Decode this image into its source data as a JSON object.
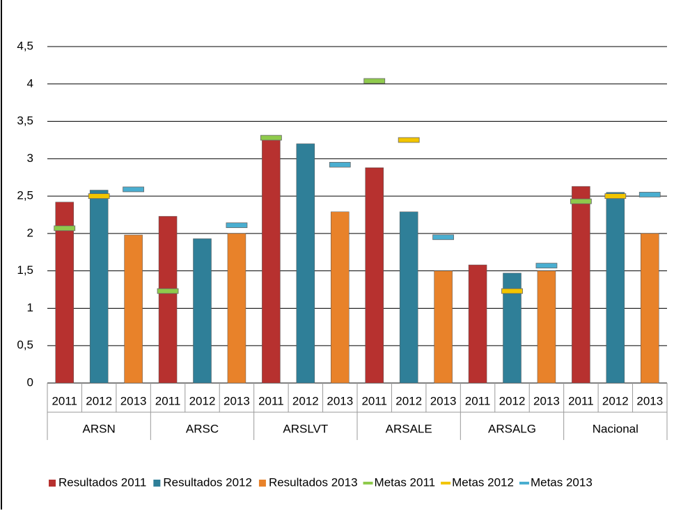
{
  "chart_data": {
    "type": "bar",
    "groups": [
      "ARSN",
      "ARSC",
      "ARSLVT",
      "ARSALE",
      "ARSALG",
      "Nacional"
    ],
    "categories": [
      "2011",
      "2012",
      "2013",
      "2011",
      "2012",
      "2013",
      "2011",
      "2012",
      "2013",
      "2011",
      "2012",
      "2013",
      "2011",
      "2012",
      "2013",
      "2011",
      "2012",
      "2013"
    ],
    "ylim": [
      0,
      4.5
    ],
    "yticks": [
      0,
      {
        "value": 0.5,
        "label": "0,5"
      },
      1,
      {
        "value": 1.5,
        "label": "1,5"
      },
      2,
      {
        "value": 2.5,
        "label": "2,5"
      },
      3,
      {
        "value": 3.5,
        "label": "3,5"
      },
      4,
      {
        "value": 4.5,
        "label": "4,5"
      }
    ],
    "grid": true,
    "legend": "bottom",
    "series": [
      {
        "name": "Resultados 2011",
        "type": "bar",
        "color": "#b7312f",
        "values": [
          2.42,
          null,
          null,
          2.23,
          null,
          null,
          3.27,
          null,
          null,
          2.88,
          null,
          null,
          1.58,
          null,
          null,
          2.63,
          null,
          null
        ]
      },
      {
        "name": "Resultados 2012",
        "type": "bar",
        "color": "#2f7f98",
        "values": [
          null,
          2.58,
          null,
          null,
          1.93,
          null,
          null,
          3.2,
          null,
          null,
          2.29,
          null,
          null,
          1.47,
          null,
          null,
          2.55,
          null
        ]
      },
      {
        "name": "Resultados 2013",
        "type": "bar",
        "color": "#e8822a",
        "values": [
          null,
          null,
          1.98,
          null,
          null,
          2.0,
          null,
          null,
          2.29,
          null,
          null,
          1.5,
          null,
          null,
          1.5,
          null,
          null,
          2.0
        ]
      },
      {
        "name": "Metas 2011",
        "type": "marker",
        "color": "#8fca4c",
        "values": [
          2.07,
          null,
          null,
          1.23,
          null,
          null,
          3.28,
          null,
          null,
          4.04,
          null,
          null,
          null,
          null,
          null,
          2.43,
          null,
          null
        ]
      },
      {
        "name": "Metas 2012",
        "type": "marker",
        "color": "#f2c500",
        "values": [
          null,
          2.5,
          null,
          null,
          null,
          null,
          null,
          null,
          null,
          null,
          3.25,
          null,
          null,
          1.23,
          null,
          null,
          2.5,
          null
        ]
      },
      {
        "name": "Metas 2013",
        "type": "marker",
        "color": "#4aaed0",
        "values": [
          null,
          null,
          2.59,
          null,
          null,
          2.11,
          null,
          null,
          2.92,
          null,
          null,
          1.95,
          null,
          null,
          1.57,
          null,
          null,
          2.52
        ]
      }
    ]
  }
}
